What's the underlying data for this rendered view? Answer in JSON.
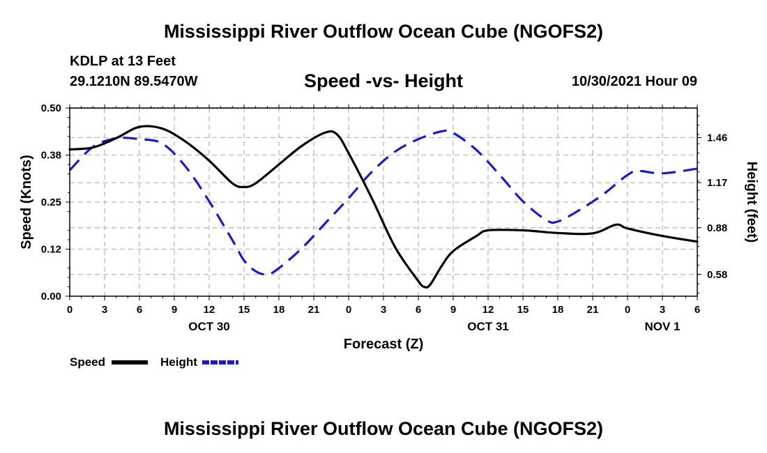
{
  "header": {
    "title": "Mississippi River Outflow Ocean Cube (NGOFS2)",
    "station": "KDLP at 13 Feet",
    "coords": "29.1210N  89.5470W",
    "subtitle": "Speed -vs- Height",
    "issued": "10/30/2021 Hour 09"
  },
  "footer": {
    "title": "Mississippi River Outflow Ocean Cube (NGOFS2)"
  },
  "chart_data": {
    "type": "line",
    "xlabel": "Forecast (Z)",
    "ylabel_left": "Speed (Knots)",
    "ylabel_right": "Height (feet)",
    "x_hours_range": [
      0,
      54
    ],
    "x_ticks": [
      {
        "h": 0,
        "label": "0"
      },
      {
        "h": 3,
        "label": "3"
      },
      {
        "h": 6,
        "label": "6"
      },
      {
        "h": 9,
        "label": "9"
      },
      {
        "h": 12,
        "label": "12"
      },
      {
        "h": 15,
        "label": "15"
      },
      {
        "h": 18,
        "label": "18"
      },
      {
        "h": 21,
        "label": "21"
      },
      {
        "h": 24,
        "label": "0"
      },
      {
        "h": 27,
        "label": "3"
      },
      {
        "h": 30,
        "label": "6"
      },
      {
        "h": 33,
        "label": "9"
      },
      {
        "h": 36,
        "label": "12"
      },
      {
        "h": 39,
        "label": "15"
      },
      {
        "h": 42,
        "label": "18"
      },
      {
        "h": 45,
        "label": "21"
      },
      {
        "h": 48,
        "label": "0"
      },
      {
        "h": 51,
        "label": "3"
      },
      {
        "h": 54,
        "label": "6"
      }
    ],
    "day_labels": [
      {
        "h": 12,
        "label": "OCT 30"
      },
      {
        "h": 36,
        "label": "OCT 31"
      },
      {
        "h": 51,
        "label": "NOV 1"
      }
    ],
    "y_left": {
      "range": [
        0,
        0.5
      ],
      "ticks": [
        {
          "v": 0.0,
          "label": "0.00"
        },
        {
          "v": 0.125,
          "label": "0.12"
        },
        {
          "v": 0.25,
          "label": "0.25"
        },
        {
          "v": 0.375,
          "label": "0.38"
        },
        {
          "v": 0.5,
          "label": "0.50"
        }
      ]
    },
    "y_right": {
      "range": [
        0.44,
        1.65
      ],
      "ticks": [
        {
          "v": 0.58,
          "label": "0.58"
        },
        {
          "v": 0.88,
          "label": "0.88"
        },
        {
          "v": 1.17,
          "label": "1.17"
        },
        {
          "v": 1.46,
          "label": "1.46"
        }
      ]
    },
    "series": [
      {
        "name": "Speed",
        "color": "#000000",
        "dash": false,
        "axis": "left",
        "points": [
          [
            0,
            0.39
          ],
          [
            2,
            0.395
          ],
          [
            4,
            0.42
          ],
          [
            6,
            0.45
          ],
          [
            8,
            0.445
          ],
          [
            10,
            0.41
          ],
          [
            12,
            0.36
          ],
          [
            14,
            0.3
          ],
          [
            15,
            0.29
          ],
          [
            16,
            0.3
          ],
          [
            18,
            0.35
          ],
          [
            20,
            0.4
          ],
          [
            22,
            0.435
          ],
          [
            23,
            0.43
          ],
          [
            24,
            0.38
          ],
          [
            26,
            0.26
          ],
          [
            28,
            0.13
          ],
          [
            30,
            0.04
          ],
          [
            30.5,
            0.025
          ],
          [
            31,
            0.03
          ],
          [
            32,
            0.08
          ],
          [
            33,
            0.12
          ],
          [
            35,
            0.16
          ],
          [
            36,
            0.175
          ],
          [
            39,
            0.175
          ],
          [
            42,
            0.168
          ],
          [
            45,
            0.167
          ],
          [
            47,
            0.19
          ],
          [
            48,
            0.18
          ],
          [
            51,
            0.16
          ],
          [
            54,
            0.145
          ]
        ]
      },
      {
        "name": "Height",
        "color": "#1a1acc",
        "dash": true,
        "axis": "right",
        "points": [
          [
            0,
            1.25
          ],
          [
            2,
            1.4
          ],
          [
            4,
            1.455
          ],
          [
            6,
            1.45
          ],
          [
            8,
            1.42
          ],
          [
            10,
            1.27
          ],
          [
            12,
            1.05
          ],
          [
            14,
            0.8
          ],
          [
            15,
            0.67
          ],
          [
            16,
            0.6
          ],
          [
            17,
            0.58
          ],
          [
            18,
            0.62
          ],
          [
            20,
            0.75
          ],
          [
            22,
            0.91
          ],
          [
            24,
            1.07
          ],
          [
            26,
            1.24
          ],
          [
            28,
            1.37
          ],
          [
            30,
            1.45
          ],
          [
            32,
            1.5
          ],
          [
            33,
            1.49
          ],
          [
            35,
            1.38
          ],
          [
            37,
            1.22
          ],
          [
            39,
            1.05
          ],
          [
            41,
            0.93
          ],
          [
            42,
            0.92
          ],
          [
            44,
            1.0
          ],
          [
            46,
            1.1
          ],
          [
            48,
            1.22
          ],
          [
            49,
            1.245
          ],
          [
            51,
            1.23
          ],
          [
            54,
            1.26
          ]
        ]
      }
    ],
    "legend": [
      {
        "label": "Speed",
        "color": "#000000",
        "dash": false
      },
      {
        "label": "Height",
        "color": "#1a1acc",
        "dash": true
      }
    ]
  }
}
